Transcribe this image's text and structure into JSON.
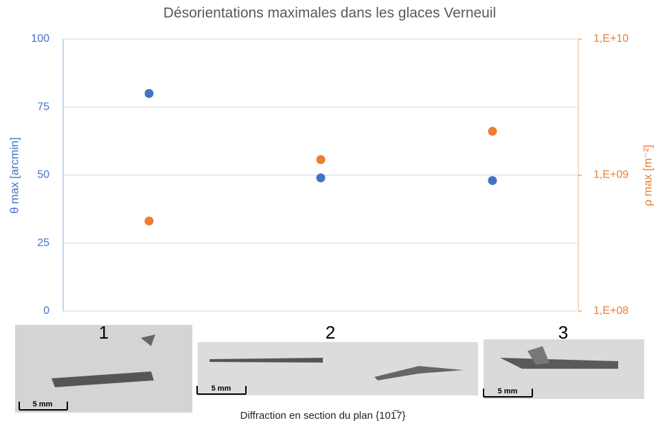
{
  "chart_data": {
    "type": "scatter",
    "title": "Désorientations maximales dans les glaces Verneuil",
    "categories": [
      "1",
      "2",
      "3"
    ],
    "y_label": "θ max [arcmin]",
    "y2_label": "ρ max [m⁻²]",
    "series": [
      {
        "color": "#4472c4",
        "values": [
          80,
          49,
          48
        ]
      },
      {
        "color": "#ed7d31",
        "axis": "y2",
        "values": [
          460000000,
          1300000000,
          2100000000
        ]
      }
    ],
    "ylim": [
      0,
      100
    ],
    "yticks": [
      0,
      25,
      50,
      75,
      100
    ],
    "y2lim": [
      100000000,
      10000000000
    ],
    "y2log": true,
    "y2ticks": [
      {
        "value": 100000000,
        "label": "1,E+08"
      },
      {
        "value": 1000000000,
        "label": "1,E+09"
      },
      {
        "value": 10000000000,
        "label": "1,E+10"
      }
    ],
    "grid": true,
    "scale_labels": [
      "5 mm",
      "5 mm",
      "5 mm"
    ],
    "caption": "Diffraction en section du plan {101̅7}"
  }
}
